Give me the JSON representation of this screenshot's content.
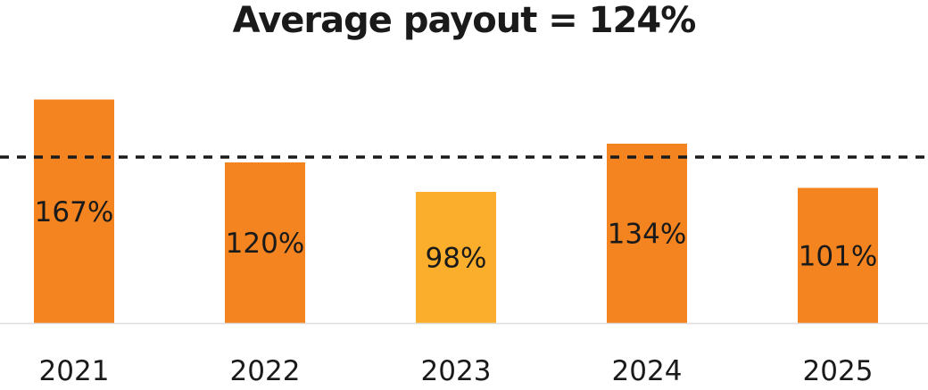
{
  "chart_data": {
    "type": "bar",
    "title": "Average payout = 124%",
    "categories": [
      "2021",
      "2022",
      "2023",
      "2024",
      "2025"
    ],
    "values": [
      167,
      120,
      98,
      134,
      101
    ],
    "value_labels": [
      "167%",
      "120%",
      "98%",
      "134%",
      "101%"
    ],
    "reference_line": {
      "value": 124,
      "style": "dashed",
      "color": "#1a1a1a"
    },
    "bar_colors": [
      "#f48420",
      "#f48420",
      "#fbae2b",
      "#f48420",
      "#f48420"
    ],
    "axis_color": "#dddddd",
    "ylim": [
      0,
      168
    ],
    "grid": false,
    "legend": "none",
    "xlabel": "",
    "ylabel": ""
  }
}
